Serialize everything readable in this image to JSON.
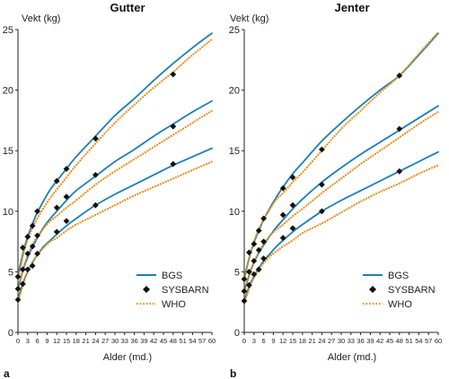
{
  "chart_data": [
    {
      "type": "line",
      "panel_letter": "a",
      "title": "Gutter",
      "xlabel": "Alder (md.)",
      "ylabel": "Vekt (kg)",
      "xlim": [
        0,
        60
      ],
      "ylim": [
        0,
        25
      ],
      "xticks": [
        0,
        3,
        6,
        9,
        12,
        15,
        18,
        21,
        24,
        27,
        30,
        33,
        36,
        39,
        42,
        45,
        48,
        51,
        54,
        57,
        60
      ],
      "yticks": [
        0,
        5,
        10,
        15,
        20,
        25
      ],
      "grid": false,
      "legend_position": "bottom-right",
      "legend": [
        "BGS",
        "SYSBARN",
        "WHO"
      ],
      "colors": {
        "BGS": "#1a7fb8",
        "SYSBARN": "#111111",
        "WHO": "#e8901e"
      },
      "series": [
        {
          "name": "BGS",
          "style": "solid",
          "percentile": "upper",
          "x": [
            0,
            1,
            2,
            3,
            4,
            5,
            6,
            8,
            10,
            12,
            15,
            18,
            24,
            30,
            36,
            42,
            48,
            54,
            60
          ],
          "y": [
            4.7,
            5.9,
            7.0,
            7.9,
            8.6,
            9.3,
            9.9,
            10.9,
            11.8,
            12.5,
            13.5,
            14.5,
            16.2,
            17.9,
            19.3,
            20.8,
            22.2,
            23.5,
            24.7
          ]
        },
        {
          "name": "BGS",
          "style": "solid",
          "percentile": "middle",
          "x": [
            0,
            1,
            2,
            3,
            4,
            5,
            6,
            8,
            10,
            12,
            15,
            18,
            24,
            30,
            36,
            42,
            48,
            54,
            60
          ],
          "y": [
            3.6,
            4.6,
            5.5,
            6.2,
            6.8,
            7.3,
            7.8,
            8.7,
            9.4,
            10.0,
            10.9,
            11.7,
            12.9,
            14.1,
            15.1,
            16.2,
            17.2,
            18.2,
            19.1
          ]
        },
        {
          "name": "BGS",
          "style": "solid",
          "percentile": "lower",
          "x": [
            0,
            1,
            2,
            3,
            4,
            5,
            6,
            8,
            10,
            12,
            15,
            18,
            24,
            30,
            36,
            42,
            48,
            54,
            60
          ],
          "y": [
            2.8,
            3.6,
            4.4,
            5.0,
            5.5,
            6.0,
            6.4,
            7.1,
            7.6,
            8.1,
            8.8,
            9.4,
            10.5,
            11.4,
            12.2,
            13.0,
            13.8,
            14.5,
            15.2
          ]
        },
        {
          "name": "WHO",
          "style": "dotted",
          "percentile": "upper",
          "x": [
            0,
            1,
            2,
            3,
            4,
            5,
            6,
            8,
            10,
            12,
            15,
            18,
            24,
            30,
            36,
            42,
            48,
            54,
            60
          ],
          "y": [
            4.4,
            5.6,
            6.8,
            7.6,
            8.3,
            8.9,
            9.4,
            10.3,
            11.1,
            11.8,
            12.8,
            13.8,
            15.6,
            17.3,
            18.8,
            20.2,
            21.5,
            22.9,
            24.2
          ]
        },
        {
          "name": "WHO",
          "style": "dotted",
          "percentile": "middle",
          "x": [
            0,
            1,
            2,
            3,
            4,
            5,
            6,
            8,
            10,
            12,
            15,
            18,
            24,
            30,
            36,
            42,
            48,
            54,
            60
          ],
          "y": [
            3.3,
            4.5,
            5.6,
            6.4,
            7.0,
            7.5,
            7.9,
            8.6,
            9.2,
            9.6,
            10.3,
            10.9,
            12.2,
            13.3,
            14.3,
            15.3,
            16.3,
            17.3,
            18.3
          ]
        },
        {
          "name": "WHO",
          "style": "dotted",
          "percentile": "lower",
          "x": [
            0,
            1,
            2,
            3,
            4,
            5,
            6,
            8,
            10,
            12,
            15,
            18,
            24,
            30,
            36,
            42,
            48,
            54,
            60
          ],
          "y": [
            2.5,
            3.4,
            4.3,
            5.0,
            5.6,
            6.0,
            6.4,
            7.0,
            7.5,
            7.8,
            8.4,
            8.9,
            9.7,
            10.5,
            11.3,
            12.0,
            12.7,
            13.4,
            14.1
          ]
        },
        {
          "name": "SYSBARN",
          "style": "markers",
          "percentile": "upper",
          "x": [
            0,
            1.5,
            3,
            4.5,
            6,
            12,
            15,
            24,
            48
          ],
          "y": [
            4.6,
            7.0,
            7.9,
            8.8,
            10.0,
            12.5,
            13.5,
            16.0,
            21.3
          ]
        },
        {
          "name": "SYSBARN",
          "style": "markers",
          "percentile": "middle",
          "x": [
            0,
            1.5,
            3,
            4.5,
            6,
            12,
            15,
            24,
            48
          ],
          "y": [
            3.6,
            5.2,
            6.5,
            7.1,
            8.0,
            10.3,
            11.2,
            13.0,
            17.0
          ]
        },
        {
          "name": "SYSBARN",
          "style": "markers",
          "percentile": "lower",
          "x": [
            0,
            1.5,
            3,
            4.5,
            6,
            12,
            15,
            24,
            48
          ],
          "y": [
            2.7,
            4.0,
            5.2,
            5.5,
            6.5,
            8.3,
            9.2,
            10.5,
            13.9
          ]
        }
      ]
    },
    {
      "type": "line",
      "panel_letter": "b",
      "title": "Jenter",
      "xlabel": "Alder (md.)",
      "ylabel": "Vekt (kg)",
      "xlim": [
        0,
        60
      ],
      "ylim": [
        0,
        25
      ],
      "xticks": [
        0,
        3,
        6,
        9,
        12,
        15,
        18,
        21,
        24,
        27,
        30,
        33,
        36,
        39,
        42,
        45,
        48,
        51,
        54,
        57,
        60
      ],
      "yticks": [
        0,
        5,
        10,
        15,
        20,
        25
      ],
      "grid": false,
      "legend_position": "bottom-right",
      "legend": [
        "BGS",
        "SYSBARN",
        "WHO"
      ],
      "colors": {
        "BGS": "#1a7fb8",
        "SYSBARN": "#111111",
        "WHO": "#e8901e"
      },
      "series": [
        {
          "name": "BGS",
          "style": "solid",
          "percentile": "upper",
          "x": [
            0,
            1,
            2,
            3,
            4,
            5,
            6,
            8,
            10,
            12,
            15,
            18,
            24,
            30,
            36,
            42,
            48,
            54,
            60
          ],
          "y": [
            4.4,
            5.6,
            6.6,
            7.4,
            8.1,
            8.7,
            9.3,
            10.3,
            11.2,
            12.0,
            13.1,
            14.0,
            15.8,
            17.3,
            18.7,
            20.0,
            21.2,
            22.9,
            24.7
          ]
        },
        {
          "name": "BGS",
          "style": "solid",
          "percentile": "middle",
          "x": [
            0,
            1,
            2,
            3,
            4,
            5,
            6,
            8,
            10,
            12,
            15,
            18,
            24,
            30,
            36,
            42,
            48,
            54,
            60
          ],
          "y": [
            3.4,
            4.3,
            5.1,
            5.8,
            6.3,
            6.8,
            7.2,
            8.0,
            8.7,
            9.3,
            10.2,
            11.0,
            12.4,
            13.6,
            14.7,
            15.7,
            16.7,
            17.7,
            18.7
          ]
        },
        {
          "name": "BGS",
          "style": "solid",
          "percentile": "lower",
          "x": [
            0,
            1,
            2,
            3,
            4,
            5,
            6,
            8,
            10,
            12,
            15,
            18,
            24,
            30,
            36,
            42,
            48,
            54,
            60
          ],
          "y": [
            2.6,
            3.4,
            4.1,
            4.6,
            5.1,
            5.5,
            5.9,
            6.5,
            7.1,
            7.6,
            8.3,
            8.9,
            10.0,
            10.9,
            11.7,
            12.5,
            13.3,
            14.1,
            14.9
          ]
        },
        {
          "name": "WHO",
          "style": "dotted",
          "percentile": "upper",
          "x": [
            0,
            1,
            2,
            3,
            4,
            5,
            6,
            8,
            10,
            12,
            15,
            18,
            24,
            30,
            36,
            42,
            48,
            54,
            60
          ],
          "y": [
            4.2,
            5.5,
            6.6,
            7.5,
            8.2,
            8.8,
            9.3,
            10.2,
            11.0,
            11.5,
            12.4,
            13.2,
            15.0,
            16.8,
            18.3,
            19.8,
            21.2,
            23.0,
            24.8
          ]
        },
        {
          "name": "WHO",
          "style": "dotted",
          "percentile": "middle",
          "x": [
            0,
            1,
            2,
            3,
            4,
            5,
            6,
            8,
            10,
            12,
            15,
            18,
            24,
            30,
            36,
            42,
            48,
            54,
            60
          ],
          "y": [
            3.2,
            4.2,
            5.1,
            5.8,
            6.4,
            6.9,
            7.3,
            8.0,
            8.5,
            8.9,
            9.6,
            10.2,
            11.5,
            12.7,
            13.9,
            15.0,
            16.1,
            17.2,
            18.2
          ]
        },
        {
          "name": "WHO",
          "style": "dotted",
          "percentile": "lower",
          "x": [
            0,
            1,
            2,
            3,
            4,
            5,
            6,
            8,
            10,
            12,
            15,
            18,
            24,
            30,
            36,
            42,
            48,
            54,
            60
          ],
          "y": [
            2.4,
            3.2,
            3.9,
            4.5,
            5.0,
            5.4,
            5.7,
            6.3,
            6.7,
            7.1,
            7.6,
            8.2,
            9.0,
            9.9,
            10.8,
            11.6,
            12.3,
            13.1,
            13.8
          ]
        },
        {
          "name": "SYSBARN",
          "style": "markers",
          "percentile": "upper",
          "x": [
            0,
            1.5,
            3,
            4.5,
            6,
            12,
            15,
            24,
            48
          ],
          "y": [
            4.4,
            6.6,
            7.3,
            8.4,
            9.4,
            11.9,
            12.8,
            15.1,
            21.2
          ]
        },
        {
          "name": "SYSBARN",
          "style": "markers",
          "percentile": "middle",
          "x": [
            0,
            1.5,
            3,
            4.5,
            6,
            12,
            15,
            24,
            48
          ],
          "y": [
            3.4,
            5.0,
            5.9,
            6.8,
            7.5,
            9.7,
            10.5,
            12.2,
            16.8
          ]
        },
        {
          "name": "SYSBARN",
          "style": "markers",
          "percentile": "lower",
          "x": [
            0,
            1.5,
            3,
            4.5,
            6,
            12,
            15,
            24,
            48
          ],
          "y": [
            2.6,
            3.9,
            4.8,
            5.2,
            6.1,
            7.8,
            8.6,
            10.0,
            13.3
          ]
        }
      ]
    }
  ]
}
